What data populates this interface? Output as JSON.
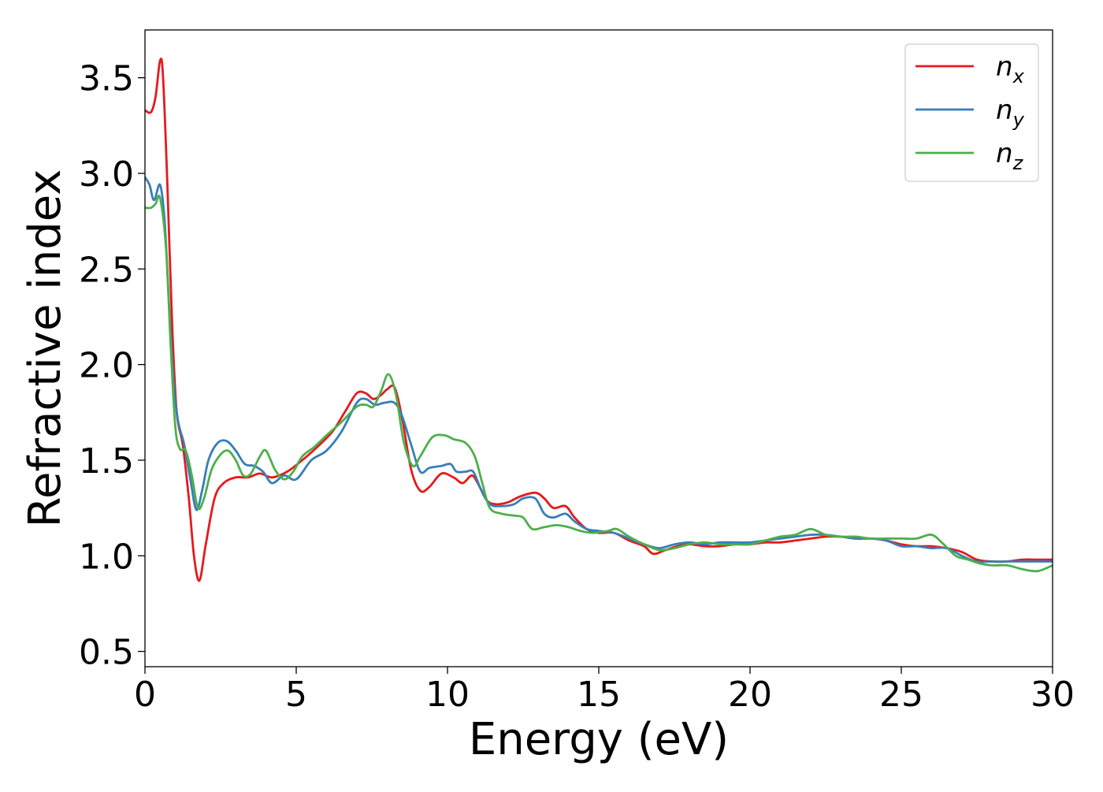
{
  "chart_data": {
    "type": "line",
    "xlabel": "Energy (eV)",
    "ylabel": "Refractive index",
    "xlim": [
      0,
      30
    ],
    "ylim": [
      0.42,
      3.75
    ],
    "xticks": [
      "0",
      "5",
      "10",
      "15",
      "20",
      "25",
      "30"
    ],
    "yticks": [
      "0.5",
      "1.0",
      "1.5",
      "2.0",
      "2.5",
      "3.0",
      "3.5"
    ],
    "legend_position": "top-right",
    "grid": false,
    "series": [
      {
        "name_base": "n",
        "name_sub": "x",
        "color": "#e41a1c",
        "points": [
          [
            0,
            3.33
          ],
          [
            0.2,
            3.32
          ],
          [
            0.35,
            3.4
          ],
          [
            0.5,
            3.59
          ],
          [
            0.6,
            3.5
          ],
          [
            0.75,
            2.9
          ],
          [
            0.9,
            2.2
          ],
          [
            1.05,
            1.75
          ],
          [
            1.25,
            1.58
          ],
          [
            1.45,
            1.3
          ],
          [
            1.62,
            1.0
          ],
          [
            1.8,
            0.87
          ],
          [
            2.0,
            1.05
          ],
          [
            2.3,
            1.3
          ],
          [
            2.6,
            1.38
          ],
          [
            3.0,
            1.41
          ],
          [
            3.4,
            1.41
          ],
          [
            3.8,
            1.43
          ],
          [
            4.2,
            1.41
          ],
          [
            4.7,
            1.44
          ],
          [
            5.2,
            1.5
          ],
          [
            5.7,
            1.57
          ],
          [
            6.2,
            1.65
          ],
          [
            6.6,
            1.75
          ],
          [
            7.0,
            1.85
          ],
          [
            7.3,
            1.85
          ],
          [
            7.55,
            1.82
          ],
          [
            7.8,
            1.84
          ],
          [
            8.0,
            1.87
          ],
          [
            8.25,
            1.88
          ],
          [
            8.5,
            1.72
          ],
          [
            8.8,
            1.45
          ],
          [
            9.1,
            1.34
          ],
          [
            9.4,
            1.36
          ],
          [
            9.8,
            1.43
          ],
          [
            10.2,
            1.41
          ],
          [
            10.5,
            1.38
          ],
          [
            10.8,
            1.42
          ],
          [
            11.0,
            1.38
          ],
          [
            11.3,
            1.29
          ],
          [
            11.6,
            1.27
          ],
          [
            12.0,
            1.28
          ],
          [
            12.4,
            1.31
          ],
          [
            12.9,
            1.33
          ],
          [
            13.2,
            1.3
          ],
          [
            13.5,
            1.25
          ],
          [
            13.9,
            1.26
          ],
          [
            14.2,
            1.2
          ],
          [
            14.6,
            1.14
          ],
          [
            15.0,
            1.12
          ],
          [
            15.5,
            1.12
          ],
          [
            16.0,
            1.08
          ],
          [
            16.5,
            1.05
          ],
          [
            16.8,
            1.01
          ],
          [
            17.2,
            1.03
          ],
          [
            17.6,
            1.05
          ],
          [
            18.0,
            1.06
          ],
          [
            18.5,
            1.05
          ],
          [
            19.0,
            1.05
          ],
          [
            19.5,
            1.06
          ],
          [
            20.0,
            1.06
          ],
          [
            20.5,
            1.07
          ],
          [
            21.0,
            1.07
          ],
          [
            21.5,
            1.08
          ],
          [
            22.0,
            1.09
          ],
          [
            22.5,
            1.1
          ],
          [
            23.0,
            1.1
          ],
          [
            23.5,
            1.09
          ],
          [
            24.0,
            1.09
          ],
          [
            24.5,
            1.08
          ],
          [
            25.0,
            1.06
          ],
          [
            25.5,
            1.05
          ],
          [
            26.0,
            1.05
          ],
          [
            26.5,
            1.04
          ],
          [
            27.0,
            1.02
          ],
          [
            27.5,
            0.98
          ],
          [
            28.0,
            0.97
          ],
          [
            28.5,
            0.97
          ],
          [
            29.0,
            0.98
          ],
          [
            29.5,
            0.98
          ],
          [
            30.0,
            0.98
          ]
        ]
      },
      {
        "name_base": "n",
        "name_sub": "y",
        "color": "#377eb8",
        "points": [
          [
            0,
            2.98
          ],
          [
            0.15,
            2.94
          ],
          [
            0.3,
            2.86
          ],
          [
            0.5,
            2.94
          ],
          [
            0.65,
            2.75
          ],
          [
            0.8,
            2.3
          ],
          [
            0.95,
            1.9
          ],
          [
            1.1,
            1.7
          ],
          [
            1.3,
            1.58
          ],
          [
            1.5,
            1.4
          ],
          [
            1.7,
            1.24
          ],
          [
            1.9,
            1.35
          ],
          [
            2.1,
            1.5
          ],
          [
            2.4,
            1.59
          ],
          [
            2.7,
            1.6
          ],
          [
            3.0,
            1.55
          ],
          [
            3.3,
            1.48
          ],
          [
            3.6,
            1.47
          ],
          [
            3.9,
            1.44
          ],
          [
            4.2,
            1.38
          ],
          [
            4.6,
            1.42
          ],
          [
            5.0,
            1.4
          ],
          [
            5.5,
            1.5
          ],
          [
            6.0,
            1.55
          ],
          [
            6.5,
            1.65
          ],
          [
            7.0,
            1.8
          ],
          [
            7.3,
            1.82
          ],
          [
            7.6,
            1.79
          ],
          [
            7.9,
            1.8
          ],
          [
            8.25,
            1.8
          ],
          [
            8.5,
            1.73
          ],
          [
            8.8,
            1.58
          ],
          [
            9.1,
            1.44
          ],
          [
            9.4,
            1.46
          ],
          [
            9.8,
            1.47
          ],
          [
            10.1,
            1.48
          ],
          [
            10.3,
            1.44
          ],
          [
            10.6,
            1.44
          ],
          [
            10.85,
            1.44
          ],
          [
            11.1,
            1.35
          ],
          [
            11.4,
            1.27
          ],
          [
            11.8,
            1.26
          ],
          [
            12.2,
            1.27
          ],
          [
            12.5,
            1.3
          ],
          [
            12.9,
            1.3
          ],
          [
            13.2,
            1.22
          ],
          [
            13.5,
            1.2
          ],
          [
            13.9,
            1.22
          ],
          [
            14.2,
            1.18
          ],
          [
            14.6,
            1.14
          ],
          [
            15.0,
            1.13
          ],
          [
            15.5,
            1.12
          ],
          [
            16.0,
            1.09
          ],
          [
            16.5,
            1.06
          ],
          [
            17.0,
            1.04
          ],
          [
            17.5,
            1.06
          ],
          [
            18.0,
            1.07
          ],
          [
            18.5,
            1.06
          ],
          [
            19.0,
            1.07
          ],
          [
            19.5,
            1.07
          ],
          [
            20.0,
            1.07
          ],
          [
            20.5,
            1.08
          ],
          [
            21.0,
            1.09
          ],
          [
            21.5,
            1.1
          ],
          [
            22.0,
            1.11
          ],
          [
            22.5,
            1.11
          ],
          [
            23.0,
            1.1
          ],
          [
            23.5,
            1.09
          ],
          [
            24.0,
            1.09
          ],
          [
            24.5,
            1.08
          ],
          [
            25.0,
            1.05
          ],
          [
            25.5,
            1.05
          ],
          [
            26.0,
            1.04
          ],
          [
            26.5,
            1.04
          ],
          [
            27.0,
            1.0
          ],
          [
            27.5,
            0.97
          ],
          [
            28.0,
            0.97
          ],
          [
            28.5,
            0.97
          ],
          [
            29.0,
            0.97
          ],
          [
            29.5,
            0.97
          ],
          [
            30.0,
            0.97
          ]
        ]
      },
      {
        "name_base": "n",
        "name_sub": "z",
        "color": "#4daf4a",
        "points": [
          [
            0,
            2.82
          ],
          [
            0.2,
            2.82
          ],
          [
            0.35,
            2.84
          ],
          [
            0.5,
            2.87
          ],
          [
            0.7,
            2.6
          ],
          [
            0.85,
            2.1
          ],
          [
            1.0,
            1.68
          ],
          [
            1.15,
            1.56
          ],
          [
            1.35,
            1.55
          ],
          [
            1.55,
            1.42
          ],
          [
            1.75,
            1.25
          ],
          [
            1.95,
            1.3
          ],
          [
            2.2,
            1.45
          ],
          [
            2.5,
            1.53
          ],
          [
            2.75,
            1.55
          ],
          [
            3.0,
            1.5
          ],
          [
            3.25,
            1.42
          ],
          [
            3.5,
            1.43
          ],
          [
            3.8,
            1.52
          ],
          [
            4.0,
            1.55
          ],
          [
            4.3,
            1.45
          ],
          [
            4.6,
            1.4
          ],
          [
            4.9,
            1.44
          ],
          [
            5.2,
            1.52
          ],
          [
            5.6,
            1.57
          ],
          [
            6.0,
            1.63
          ],
          [
            6.5,
            1.7
          ],
          [
            7.0,
            1.78
          ],
          [
            7.3,
            1.79
          ],
          [
            7.55,
            1.78
          ],
          [
            7.8,
            1.86
          ],
          [
            8.05,
            1.95
          ],
          [
            8.3,
            1.84
          ],
          [
            8.55,
            1.6
          ],
          [
            8.85,
            1.47
          ],
          [
            9.1,
            1.52
          ],
          [
            9.5,
            1.62
          ],
          [
            9.9,
            1.63
          ],
          [
            10.2,
            1.61
          ],
          [
            10.6,
            1.59
          ],
          [
            10.9,
            1.52
          ],
          [
            11.15,
            1.38
          ],
          [
            11.4,
            1.25
          ],
          [
            11.8,
            1.22
          ],
          [
            12.2,
            1.21
          ],
          [
            12.5,
            1.2
          ],
          [
            12.8,
            1.14
          ],
          [
            13.2,
            1.15
          ],
          [
            13.6,
            1.16
          ],
          [
            14.0,
            1.15
          ],
          [
            14.4,
            1.13
          ],
          [
            14.8,
            1.12
          ],
          [
            15.3,
            1.13
          ],
          [
            15.6,
            1.14
          ],
          [
            16.0,
            1.1
          ],
          [
            16.5,
            1.06
          ],
          [
            17.0,
            1.03
          ],
          [
            17.5,
            1.04
          ],
          [
            18.0,
            1.06
          ],
          [
            18.5,
            1.07
          ],
          [
            19.0,
            1.06
          ],
          [
            19.5,
            1.06
          ],
          [
            20.0,
            1.06
          ],
          [
            20.5,
            1.08
          ],
          [
            21.0,
            1.1
          ],
          [
            21.5,
            1.11
          ],
          [
            22.0,
            1.14
          ],
          [
            22.5,
            1.11
          ],
          [
            23.0,
            1.1
          ],
          [
            23.5,
            1.1
          ],
          [
            24.0,
            1.09
          ],
          [
            24.5,
            1.09
          ],
          [
            25.0,
            1.09
          ],
          [
            25.5,
            1.09
          ],
          [
            26.0,
            1.11
          ],
          [
            26.4,
            1.06
          ],
          [
            26.8,
            1.0
          ],
          [
            27.2,
            0.98
          ],
          [
            27.6,
            0.96
          ],
          [
            28.0,
            0.95
          ],
          [
            28.5,
            0.95
          ],
          [
            29.0,
            0.93
          ],
          [
            29.5,
            0.92
          ],
          [
            30.0,
            0.95
          ]
        ]
      }
    ]
  }
}
